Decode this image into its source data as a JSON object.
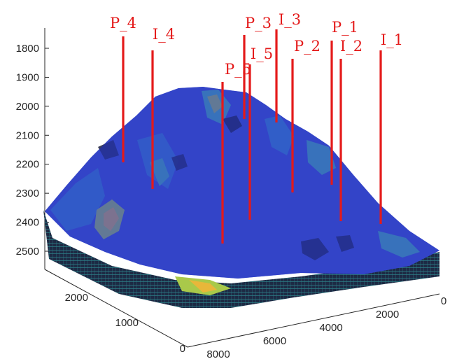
{
  "chart_data": {
    "type": "3d-surface",
    "title": "",
    "xlabel": "",
    "ylabel": "",
    "zlabel": "",
    "z_axis": {
      "direction": "reversed",
      "ticks": [
        1800,
        1900,
        2000,
        2100,
        2200,
        2300,
        2400,
        2500
      ],
      "tick_labels": [
        "1800",
        "1900",
        "2000",
        "2100",
        "2200",
        "2300",
        "2400",
        "2500"
      ]
    },
    "y_axis": {
      "ticks": [
        0,
        1000,
        2000
      ],
      "tick_labels": [
        "0",
        "1000",
        "2000"
      ]
    },
    "x_axis": {
      "ticks": [
        8000,
        6000,
        4000,
        2000,
        0
      ],
      "tick_labels": [
        "8000",
        "6000",
        "4000",
        "2000",
        "0"
      ]
    },
    "colormap": [
      "#2a33a8",
      "#3f55d6",
      "#2f86c9",
      "#3fb7a8",
      "#a9c94a",
      "#e8b73a"
    ],
    "well_color": "#e41a1a",
    "wells": [
      {
        "name": "P_4",
        "label": "P_4",
        "type": "producer"
      },
      {
        "name": "I_4",
        "label": "I_4",
        "type": "injector"
      },
      {
        "name": "P_3",
        "label": "P_3",
        "type": "producer"
      },
      {
        "name": "I_3",
        "label": "I_3",
        "type": "injector"
      },
      {
        "name": "P_5",
        "label": "P_5",
        "type": "producer"
      },
      {
        "name": "I_5",
        "label": "I_5",
        "type": "injector"
      },
      {
        "name": "P_2",
        "label": "P_2",
        "type": "producer"
      },
      {
        "name": "P_1",
        "label": "P_1",
        "type": "producer"
      },
      {
        "name": "I_2",
        "label": "I_2",
        "type": "injector"
      },
      {
        "name": "I_1",
        "label": "I_1",
        "type": "injector"
      }
    ]
  }
}
